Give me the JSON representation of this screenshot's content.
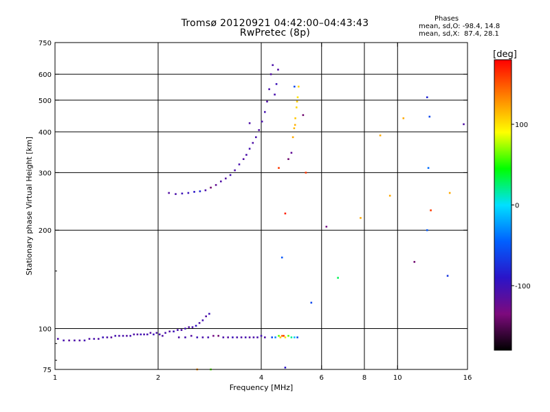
{
  "header": {
    "title_line1": "Tromsø 20120921 04:42:00–04:43:43",
    "title_line2": "RwPretec (8p)",
    "stats_title": "Phases",
    "stats_o": "mean, sd,O: -98.4, 14.8",
    "stats_x": "mean, sd,X:  87.4, 28.1"
  },
  "chart_data": {
    "type": "scatter",
    "xlabel": "Frequency [MHz]",
    "ylabel": "Stationary phase Virtual Height [km]",
    "xscale": "log",
    "yscale": "log",
    "xlim": [
      1,
      16
    ],
    "ylim": [
      75,
      750
    ],
    "xticks": [
      {
        "value": 1,
        "label": "1"
      },
      {
        "value": 2,
        "label": "2"
      },
      {
        "value": 4,
        "label": "4"
      },
      {
        "value": 6,
        "label": "6"
      },
      {
        "value": 8,
        "label": "8"
      },
      {
        "value": 10,
        "label": "10"
      },
      {
        "value": 16,
        "label": "16"
      }
    ],
    "yticks": [
      {
        "value": 75,
        "label": "75"
      },
      {
        "value": 100,
        "label": "100"
      },
      {
        "value": 200,
        "label": "200"
      },
      {
        "value": 300,
        "label": "300"
      },
      {
        "value": 400,
        "label": "400"
      },
      {
        "value": 500,
        "label": "500"
      },
      {
        "value": 600,
        "label": "600"
      },
      {
        "value": 750,
        "label": "750"
      }
    ],
    "xgrid": [
      2,
      4,
      6,
      8,
      10
    ],
    "ygrid": [
      100,
      200,
      300,
      400,
      500,
      600
    ],
    "colorbar": {
      "label": "[deg]",
      "min": -180,
      "max": 180,
      "ticks": [
        100,
        0,
        -100
      ],
      "stops": [
        "#000000",
        "#7d0a7d",
        "#2a14c8",
        "#0060ff",
        "#00e0ff",
        "#00ff00",
        "#ffff00",
        "#ff8000",
        "#ff0000"
      ]
    },
    "series": [
      {
        "points": [
          [
            1.02,
            93,
            -110
          ],
          [
            1.06,
            92,
            -105
          ],
          [
            1.1,
            92,
            -115
          ],
          [
            1.14,
            92,
            -108
          ],
          [
            1.18,
            92,
            -112
          ],
          [
            1.22,
            92,
            -104
          ],
          [
            1.26,
            93,
            -110
          ],
          [
            1.3,
            93,
            -106
          ],
          [
            1.34,
            93,
            -112
          ],
          [
            1.38,
            94,
            -100
          ],
          [
            1.42,
            94,
            -108
          ],
          [
            1.46,
            94,
            -115
          ],
          [
            1.5,
            95,
            -103
          ],
          [
            1.54,
            95,
            -110
          ],
          [
            1.58,
            95,
            -106
          ],
          [
            1.62,
            95,
            -112
          ],
          [
            1.66,
            95,
            -104
          ],
          [
            1.7,
            96,
            -109
          ],
          [
            1.74,
            96,
            -113
          ],
          [
            1.78,
            96,
            -101
          ],
          [
            1.82,
            96,
            -108
          ],
          [
            1.86,
            96,
            -105
          ],
          [
            1.9,
            97,
            -112
          ],
          [
            1.94,
            96,
            -100
          ],
          [
            1.98,
            97,
            -109
          ],
          [
            2.02,
            96,
            -106
          ],
          [
            2.06,
            95,
            -111
          ]
        ]
      },
      {
        "points": [
          [
            2.1,
            97,
            -108
          ],
          [
            2.16,
            98,
            -112
          ],
          [
            2.22,
            98,
            -100
          ],
          [
            2.28,
            99,
            -106
          ],
          [
            2.34,
            99,
            -110
          ],
          [
            2.4,
            100,
            -104
          ],
          [
            2.46,
            101,
            -112
          ],
          [
            2.52,
            101,
            -108
          ],
          [
            2.58,
            102,
            -95
          ],
          [
            2.64,
            104,
            -110
          ],
          [
            2.7,
            106,
            -103
          ],
          [
            2.76,
            109,
            -112
          ],
          [
            2.82,
            111,
            -100
          ]
        ]
      },
      {
        "points": [
          [
            2.3,
            94,
            -110
          ],
          [
            2.4,
            94,
            -105
          ],
          [
            2.5,
            95,
            -112
          ],
          [
            2.6,
            94,
            -100
          ],
          [
            2.7,
            94,
            -108
          ],
          [
            2.8,
            94,
            -104
          ],
          [
            2.9,
            95,
            -130
          ],
          [
            3.0,
            95,
            -140
          ],
          [
            3.1,
            94,
            -108
          ],
          [
            3.2,
            94,
            -112
          ],
          [
            3.3,
            94,
            -100
          ],
          [
            3.4,
            94,
            -106
          ],
          [
            3.5,
            94,
            -110
          ],
          [
            3.6,
            94,
            -104
          ],
          [
            3.7,
            94,
            -112
          ],
          [
            3.8,
            94,
            -108
          ],
          [
            3.9,
            94,
            -106
          ],
          [
            4.0,
            95,
            -104
          ],
          [
            4.1,
            94,
            -110
          ]
        ]
      },
      {
        "points": [
          [
            4.3,
            94,
            -60
          ],
          [
            4.4,
            94,
            -30
          ],
          [
            4.5,
            95,
            60
          ],
          [
            4.55,
            94,
            110
          ],
          [
            4.6,
            95,
            140
          ],
          [
            4.65,
            95,
            160
          ],
          [
            4.7,
            94,
            100
          ],
          [
            4.8,
            95,
            60
          ],
          [
            4.9,
            94,
            20
          ],
          [
            5.0,
            94,
            -10
          ],
          [
            5.1,
            94,
            -60
          ]
        ]
      },
      {
        "points": [
          [
            2.15,
            260,
            -112
          ],
          [
            2.25,
            258,
            -108
          ],
          [
            2.35,
            259,
            -100
          ],
          [
            2.45,
            260,
            -98
          ],
          [
            2.55,
            262,
            -90
          ],
          [
            2.65,
            263,
            -80
          ],
          [
            2.75,
            265,
            -108
          ],
          [
            2.85,
            270,
            -140
          ],
          [
            2.95,
            275,
            -120
          ],
          [
            3.05,
            282,
            -110
          ],
          [
            3.15,
            288,
            -112
          ],
          [
            3.25,
            295,
            -104
          ],
          [
            3.35,
            305,
            -110
          ],
          [
            3.45,
            318,
            -106
          ],
          [
            3.55,
            330,
            -112
          ],
          [
            3.62,
            340,
            -108
          ],
          [
            3.7,
            355,
            -104
          ],
          [
            3.78,
            370,
            -110
          ],
          [
            3.86,
            385,
            -106
          ],
          [
            3.94,
            405,
            -112
          ],
          [
            4.02,
            430,
            -108
          ],
          [
            4.1,
            460,
            -104
          ],
          [
            4.16,
            495,
            -110
          ],
          [
            4.22,
            540,
            -106
          ],
          [
            4.27,
            600,
            -112
          ],
          [
            4.32,
            640,
            -108
          ],
          [
            4.48,
            620,
            -112
          ],
          [
            4.43,
            560,
            -100
          ],
          [
            4.38,
            520,
            -106
          ]
        ]
      },
      {
        "points": [
          [
            4.95,
            385,
            120
          ],
          [
            4.99,
            410,
            115
          ],
          [
            5.03,
            440,
            110
          ],
          [
            5.07,
            475,
            105
          ],
          [
            5.11,
            510,
            100
          ],
          [
            5.14,
            550,
            105
          ],
          [
            5.02,
            420,
            118
          ],
          [
            5.09,
            495,
            108
          ]
        ]
      },
      {
        "points": [
          [
            2.6,
            75,
            130
          ],
          [
            2.85,
            75,
            60
          ],
          [
            3.7,
            425,
            -110
          ],
          [
            4.5,
            310,
            160
          ],
          [
            4.7,
            225,
            170
          ],
          [
            4.8,
            330,
            -140
          ],
          [
            4.9,
            345,
            -120
          ],
          [
            5.4,
            300,
            160
          ],
          [
            5.3,
            450,
            -140
          ],
          [
            5.0,
            550,
            -60
          ],
          [
            4.6,
            165,
            -50
          ],
          [
            5.6,
            120,
            -60
          ],
          [
            6.2,
            205,
            -130
          ],
          [
            6.7,
            143,
            30
          ],
          [
            7.8,
            218,
            120
          ],
          [
            8.9,
            390,
            120
          ],
          [
            9.5,
            255,
            120
          ],
          [
            10.4,
            440,
            120
          ],
          [
            11.2,
            160,
            -140
          ],
          [
            12.2,
            510,
            -80
          ],
          [
            12.4,
            445,
            -60
          ],
          [
            12.3,
            310,
            -40
          ],
          [
            12.2,
            200,
            -50
          ],
          [
            12.5,
            230,
            160
          ],
          [
            14.2,
            260,
            120
          ],
          [
            14.0,
            145,
            -70
          ],
          [
            15.6,
            422,
            -110
          ],
          [
            4.7,
            76,
            -90
          ]
        ]
      }
    ]
  }
}
